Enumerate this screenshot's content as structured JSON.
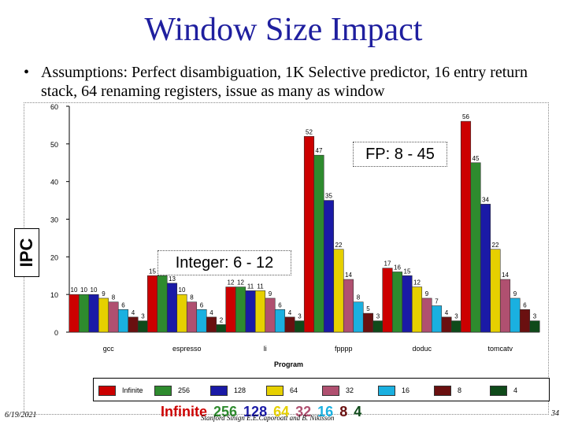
{
  "slide": {
    "title": "Window Size Impact",
    "bullet_dot": "•",
    "bullet_text": "Assumptions: Perfect disambiguation, 1K Selective predictor, 16 entry return stack, 64 renaming registers, issue as many as window",
    "date": "6/19/2021",
    "page_number": "34",
    "footer": "Stanford Sinign    E.E.Caporoatt and B. Nikisson",
    "ipc_label": "IPC",
    "fp_callout": "FP: 8 - 45",
    "int_callout": "Integer: 6 - 12",
    "window_line": [
      {
        "text": "Infinite",
        "color": "#cc0000"
      },
      {
        "text": "256",
        "color": "#2e8b2e"
      },
      {
        "text": "128",
        "color": "#1a1aa6"
      },
      {
        "text": "64",
        "color": "#e6d000"
      },
      {
        "text": "32",
        "color": "#b05070"
      },
      {
        "text": "16",
        "color": "#1ab0e0"
      },
      {
        "text": "8",
        "color": "#6a1010"
      },
      {
        "text": "4",
        "color": "#0f4a1a"
      }
    ]
  },
  "chart_data": {
    "type": "bar",
    "xlabel": "Program",
    "ylabel": "IPC",
    "ylim": [
      0,
      60
    ],
    "yticks": [
      "0",
      "10",
      "20",
      "30",
      "40",
      "50",
      "60"
    ],
    "categories": [
      "gcc",
      "espresso",
      "li",
      "fpppp",
      "doduc",
      "tomcatv"
    ],
    "series": [
      {
        "name": "Infinite",
        "color": "#cc0000",
        "values": [
          10,
          15,
          12,
          52,
          17,
          56
        ]
      },
      {
        "name": "256",
        "color": "#2e8b2e",
        "values": [
          10,
          15,
          12,
          47,
          16,
          45
        ]
      },
      {
        "name": "128",
        "color": "#1a1aa6",
        "values": [
          10,
          13,
          11,
          35,
          15,
          34
        ]
      },
      {
        "name": "64",
        "color": "#e6d000",
        "values": [
          9,
          10,
          11,
          22,
          12,
          22
        ]
      },
      {
        "name": "32",
        "color": "#b05070",
        "values": [
          8,
          8,
          9,
          14,
          9,
          14
        ]
      },
      {
        "name": "16",
        "color": "#1ab0e0",
        "values": [
          6,
          6,
          6,
          8,
          7,
          9
        ]
      },
      {
        "name": "8",
        "color": "#6a1010",
        "values": [
          4,
          4,
          4,
          5,
          4,
          6
        ]
      },
      {
        "name": "4",
        "color": "#0f4a1a",
        "values": [
          3,
          2,
          3,
          3,
          3,
          3
        ]
      }
    ]
  }
}
